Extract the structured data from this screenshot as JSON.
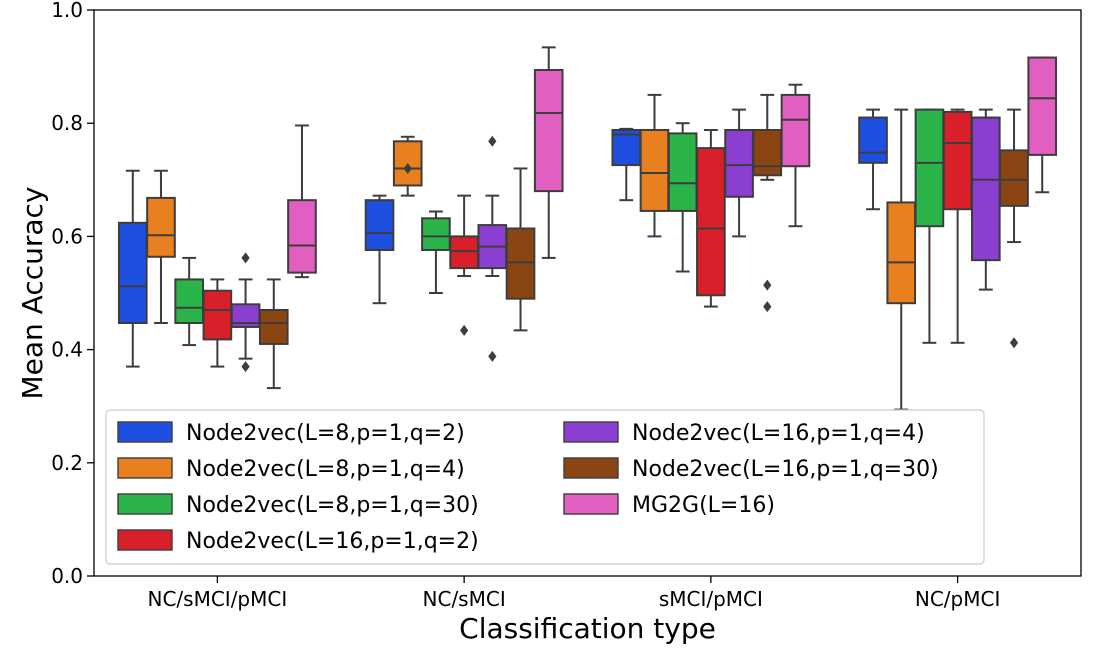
{
  "chart_data": {
    "type": "box",
    "title": "",
    "xlabel": "Classification type",
    "ylabel": "Mean Accuracy",
    "ylim": [
      0.0,
      1.0
    ],
    "yticks": [
      0.0,
      0.2,
      0.4,
      0.6,
      0.8,
      1.0
    ],
    "yticks_labels": [
      "0.0",
      "0.2",
      "0.4",
      "0.6",
      "0.8",
      "1.0"
    ],
    "categories": [
      "NC/sMCI/pMCI",
      "NC/sMCI",
      "sMCI/pMCI",
      "NC/pMCI"
    ],
    "grid": false,
    "legend_position": "lower-left",
    "series": [
      {
        "name": "Node2vec(L=8,p=1,q=2)",
        "color": "#1f4fe0",
        "boxes": [
          {
            "whisker_low": 0.37,
            "q1": 0.447,
            "median": 0.512,
            "q3": 0.624,
            "whisker_high": 0.716,
            "outliers": []
          },
          {
            "whisker_low": 0.482,
            "q1": 0.576,
            "median": 0.606,
            "q3": 0.664,
            "whisker_high": 0.672,
            "outliers": []
          },
          {
            "whisker_low": 0.664,
            "q1": 0.726,
            "median": 0.78,
            "q3": 0.788,
            "whisker_high": 0.79,
            "outliers": []
          },
          {
            "whisker_low": 0.648,
            "q1": 0.73,
            "median": 0.748,
            "q3": 0.81,
            "whisker_high": 0.824,
            "outliers": []
          }
        ]
      },
      {
        "name": "Node2vec(L=8,p=1,q=4)",
        "color": "#e8801f",
        "boxes": [
          {
            "whisker_low": 0.447,
            "q1": 0.564,
            "median": 0.602,
            "q3": 0.668,
            "whisker_high": 0.716,
            "outliers": []
          },
          {
            "whisker_low": 0.672,
            "q1": 0.69,
            "median": 0.72,
            "q3": 0.768,
            "whisker_high": 0.776,
            "outliers": [
              0.72
            ]
          },
          {
            "whisker_low": 0.6,
            "q1": 0.645,
            "median": 0.712,
            "q3": 0.788,
            "whisker_high": 0.85,
            "outliers": []
          },
          {
            "whisker_low": 0.294,
            "q1": 0.482,
            "median": 0.554,
            "q3": 0.66,
            "whisker_high": 0.824,
            "outliers": []
          }
        ]
      },
      {
        "name": "Node2vec(L=8,p=1,q=30)",
        "color": "#2bb44a",
        "boxes": [
          {
            "whisker_low": 0.408,
            "q1": 0.447,
            "median": 0.474,
            "q3": 0.524,
            "whisker_high": 0.562,
            "outliers": []
          },
          {
            "whisker_low": 0.5,
            "q1": 0.576,
            "median": 0.6,
            "q3": 0.632,
            "whisker_high": 0.644,
            "outliers": []
          },
          {
            "whisker_low": 0.538,
            "q1": 0.645,
            "median": 0.694,
            "q3": 0.782,
            "whisker_high": 0.8,
            "outliers": []
          },
          {
            "whisker_low": 0.412,
            "q1": 0.618,
            "median": 0.73,
            "q3": 0.824,
            "whisker_high": 0.824,
            "outliers": []
          }
        ]
      },
      {
        "name": "Node2vec(L=16,p=1,q=2)",
        "color": "#d81f2a",
        "boxes": [
          {
            "whisker_low": 0.37,
            "q1": 0.418,
            "median": 0.47,
            "q3": 0.504,
            "whisker_high": 0.524,
            "outliers": []
          },
          {
            "whisker_low": 0.53,
            "q1": 0.544,
            "median": 0.574,
            "q3": 0.6,
            "whisker_high": 0.672,
            "outliers": [
              0.434
            ]
          },
          {
            "whisker_low": 0.476,
            "q1": 0.496,
            "median": 0.614,
            "q3": 0.756,
            "whisker_high": 0.788,
            "outliers": []
          },
          {
            "whisker_low": 0.412,
            "q1": 0.648,
            "median": 0.765,
            "q3": 0.82,
            "whisker_high": 0.824,
            "outliers": []
          }
        ]
      },
      {
        "name": "Node2vec(L=16,p=1,q=4)",
        "color": "#8b3fd1",
        "boxes": [
          {
            "whisker_low": 0.384,
            "q1": 0.44,
            "median": 0.447,
            "q3": 0.48,
            "whisker_high": 0.524,
            "outliers": [
              0.562,
              0.37
            ]
          },
          {
            "whisker_low": 0.53,
            "q1": 0.544,
            "median": 0.582,
            "q3": 0.62,
            "whisker_high": 0.672,
            "outliers": [
              0.768,
              0.388
            ]
          },
          {
            "whisker_low": 0.6,
            "q1": 0.67,
            "median": 0.726,
            "q3": 0.788,
            "whisker_high": 0.824,
            "outliers": []
          },
          {
            "whisker_low": 0.506,
            "q1": 0.558,
            "median": 0.7,
            "q3": 0.81,
            "whisker_high": 0.824,
            "outliers": []
          }
        ]
      },
      {
        "name": "Node2vec(L=16,p=1,q=30)",
        "color": "#8b4513",
        "boxes": [
          {
            "whisker_low": 0.332,
            "q1": 0.41,
            "median": 0.447,
            "q3": 0.47,
            "whisker_high": 0.524,
            "outliers": []
          },
          {
            "whisker_low": 0.434,
            "q1": 0.49,
            "median": 0.554,
            "q3": 0.614,
            "whisker_high": 0.72,
            "outliers": []
          },
          {
            "whisker_low": 0.7,
            "q1": 0.708,
            "median": 0.724,
            "q3": 0.788,
            "whisker_high": 0.85,
            "outliers": [
              0.514,
              0.476
            ]
          },
          {
            "whisker_low": 0.59,
            "q1": 0.654,
            "median": 0.7,
            "q3": 0.752,
            "whisker_high": 0.824,
            "outliers": [
              0.412
            ]
          }
        ]
      },
      {
        "name": "MG2G(L=16)",
        "color": "#e05fc0",
        "boxes": [
          {
            "whisker_low": 0.528,
            "q1": 0.536,
            "median": 0.584,
            "q3": 0.664,
            "whisker_high": 0.796,
            "outliers": []
          },
          {
            "whisker_low": 0.562,
            "q1": 0.68,
            "median": 0.818,
            "q3": 0.894,
            "whisker_high": 0.934,
            "outliers": []
          },
          {
            "whisker_low": 0.618,
            "q1": 0.724,
            "median": 0.806,
            "q3": 0.85,
            "whisker_high": 0.868,
            "outliers": []
          },
          {
            "whisker_low": 0.678,
            "q1": 0.744,
            "median": 0.844,
            "q3": 0.916,
            "whisker_high": 0.916,
            "outliers": []
          }
        ]
      }
    ]
  }
}
